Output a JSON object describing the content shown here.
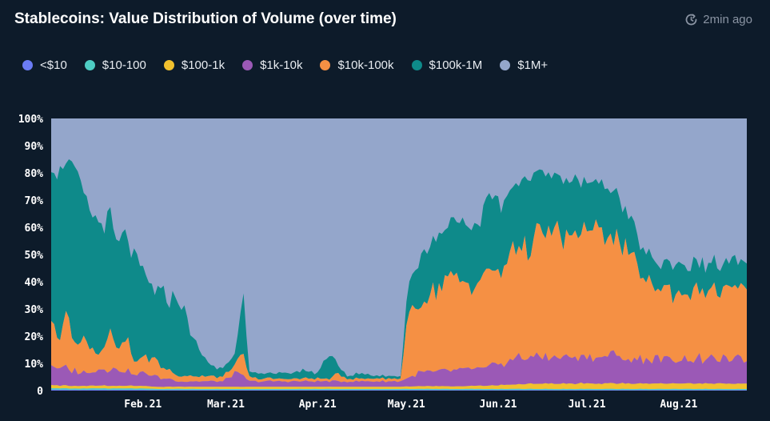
{
  "header": {
    "title": "Stablecoins: Value Distribution of Volume (over time)",
    "updated": "2min ago"
  },
  "colors": {
    "background": "#0d1b2a",
    "title": "#ffffff",
    "muted": "#8a94a3"
  },
  "chart_data": {
    "type": "area",
    "stacked": true,
    "normalized": true,
    "title": "Stablecoins: Value Distribution of Volume (over time)",
    "xlabel": "",
    "ylabel": "",
    "ylim": [
      0,
      100
    ],
    "yticks": [
      "0",
      "10%",
      "20%",
      "30%",
      "40%",
      "50%",
      "60%",
      "70%",
      "80%",
      "90%",
      "100%"
    ],
    "xticks": [
      {
        "label": "Feb.21",
        "day": 31
      },
      {
        "label": "Mar.21",
        "day": 59
      },
      {
        "label": "Apr.21",
        "day": 90
      },
      {
        "label": "May.21",
        "day": 120
      },
      {
        "label": "Jun.21",
        "day": 151
      },
      {
        "label": "Jul.21",
        "day": 181
      },
      {
        "label": "Aug.21",
        "day": 212
      }
    ],
    "x_range_days": [
      0,
      235
    ],
    "legend_position": "top",
    "keypoints_day": [
      0,
      2,
      5,
      8,
      12,
      16,
      18,
      20,
      22,
      25,
      28,
      31,
      35,
      38,
      40,
      43,
      46,
      50,
      54,
      58,
      62,
      65,
      67,
      70,
      75,
      80,
      85,
      90,
      94,
      97,
      100,
      105,
      110,
      115,
      118,
      120,
      125,
      130,
      135,
      140,
      145,
      148,
      152,
      156,
      160,
      165,
      170,
      175,
      180,
      185,
      190,
      195,
      200,
      205,
      210,
      215,
      220,
      225,
      230,
      235
    ],
    "series": [
      {
        "name": "<$10",
        "color": "#6b7cf5",
        "values": [
          0.3,
          0.3,
          0.3,
          0.3,
          0.3,
          0.3,
          0.3,
          0.3,
          0.3,
          0.3,
          0.3,
          0.3,
          0.2,
          0.2,
          0.2,
          0.2,
          0.2,
          0.2,
          0.2,
          0.2,
          0.2,
          0.2,
          0.2,
          0.2,
          0.2,
          0.2,
          0.2,
          0.2,
          0.2,
          0.2,
          0.2,
          0.2,
          0.2,
          0.2,
          0.2,
          0.2,
          0.2,
          0.2,
          0.2,
          0.2,
          0.2,
          0.2,
          0.2,
          0.2,
          0.2,
          0.2,
          0.2,
          0.2,
          0.2,
          0.2,
          0.2,
          0.2,
          0.2,
          0.2,
          0.2,
          0.2,
          0.2,
          0.2,
          0.2,
          0.2
        ]
      },
      {
        "name": "$10-100",
        "color": "#4ecdc4",
        "values": [
          0.5,
          0.5,
          0.5,
          0.5,
          0.5,
          0.5,
          0.5,
          0.5,
          0.5,
          0.5,
          0.5,
          0.5,
          0.4,
          0.4,
          0.4,
          0.4,
          0.4,
          0.4,
          0.4,
          0.4,
          0.4,
          0.4,
          0.4,
          0.4,
          0.4,
          0.4,
          0.4,
          0.4,
          0.4,
          0.4,
          0.4,
          0.4,
          0.4,
          0.4,
          0.4,
          0.4,
          0.4,
          0.4,
          0.4,
          0.4,
          0.4,
          0.4,
          0.4,
          0.4,
          0.4,
          0.4,
          0.4,
          0.4,
          0.4,
          0.4,
          0.4,
          0.4,
          0.4,
          0.4,
          0.4,
          0.4,
          0.4,
          0.4,
          0.4,
          0.4
        ]
      },
      {
        "name": "$100-1k",
        "color": "#f2c12e",
        "values": [
          1.0,
          1.0,
          1.0,
          1.0,
          1.0,
          1.0,
          1.0,
          1.0,
          1.0,
          1.0,
          1.0,
          1.0,
          0.8,
          0.8,
          0.8,
          0.8,
          0.8,
          0.8,
          0.8,
          0.8,
          0.8,
          0.8,
          0.8,
          0.8,
          0.8,
          0.8,
          0.8,
          0.8,
          0.8,
          0.8,
          0.8,
          0.8,
          0.8,
          0.8,
          0.8,
          0.9,
          1.0,
          1.0,
          1.0,
          1.0,
          1.2,
          1.3,
          1.5,
          1.5,
          1.8,
          2.0,
          2.0,
          2.0,
          2.0,
          2.0,
          2.0,
          2.0,
          2.0,
          2.0,
          2.0,
          2.0,
          2.0,
          2.0,
          2.0,
          2.0
        ]
      },
      {
        "name": "$1k-10k",
        "color": "#9b59b6",
        "values": [
          7,
          6,
          6,
          6,
          5,
          6,
          6,
          7,
          6,
          6,
          4,
          5,
          4,
          3,
          3,
          2,
          2,
          2,
          2,
          2,
          5,
          4,
          2,
          2,
          2,
          2,
          2,
          2,
          2,
          2,
          2,
          2,
          2,
          2,
          2,
          3,
          5,
          5,
          6,
          6,
          6,
          7,
          8,
          9,
          10,
          10,
          10,
          10,
          10,
          10,
          10,
          9,
          9,
          9,
          9,
          9,
          9,
          9,
          9,
          9
        ]
      },
      {
        "name": "$10k-100k",
        "color": "#f59044",
        "values": [
          16,
          10,
          20,
          12,
          12,
          6,
          8,
          15,
          7,
          12,
          5,
          6,
          6,
          4,
          3,
          2,
          2,
          2,
          2,
          1.5,
          3,
          8,
          1.5,
          1,
          1,
          1,
          1,
          1,
          1,
          3,
          1,
          1,
          1,
          1,
          1,
          20,
          27,
          30,
          34,
          31,
          31,
          38,
          32,
          42,
          41,
          43,
          47,
          42,
          47,
          46,
          45,
          38,
          30,
          26,
          25,
          25,
          25,
          25,
          25,
          25
        ]
      },
      {
        "name": "$100k-1M",
        "color": "#0e8a8a",
        "values": [
          58,
          62,
          57,
          62,
          50,
          48,
          46,
          41,
          38,
          38,
          38,
          30,
          25,
          27,
          26,
          30,
          20,
          9,
          4,
          3,
          5,
          20,
          1.5,
          2,
          2,
          2,
          3,
          2,
          10,
          3,
          1,
          2,
          1,
          1,
          1,
          10,
          17,
          20,
          20,
          23,
          23,
          25,
          25,
          23,
          24,
          25,
          19,
          22,
          18,
          17,
          17,
          15,
          10,
          9,
          10,
          10,
          10,
          10,
          10,
          10
        ]
      },
      {
        "name": "$1M+",
        "color": "#94a6cb",
        "values": [
          17.2,
          20.2,
          15.2,
          18.2,
          31.2,
          38.2,
          38.2,
          35.2,
          47.2,
          42.2,
          51.2,
          57.2,
          63.6,
          64.6,
          66.6,
          64.6,
          74.6,
          85.6,
          90.6,
          92.6,
          86.6,
          66.6,
          94.6,
          93.6,
          93.6,
          93.6,
          92.6,
          93.6,
          85.6,
          90.6,
          95.6,
          93.6,
          94.6,
          94.6,
          94.6,
          65.5,
          49.4,
          43.4,
          38.4,
          38.4,
          38.2,
          28.1,
          32.9,
          23.9,
          22.6,
          19.4,
          21.4,
          23.4,
          22.4,
          24.4,
          25.4,
          35.4,
          48.4,
          53.4,
          53.4,
          53.4,
          53.4,
          53.4,
          53.4,
          53.4
        ]
      }
    ]
  }
}
